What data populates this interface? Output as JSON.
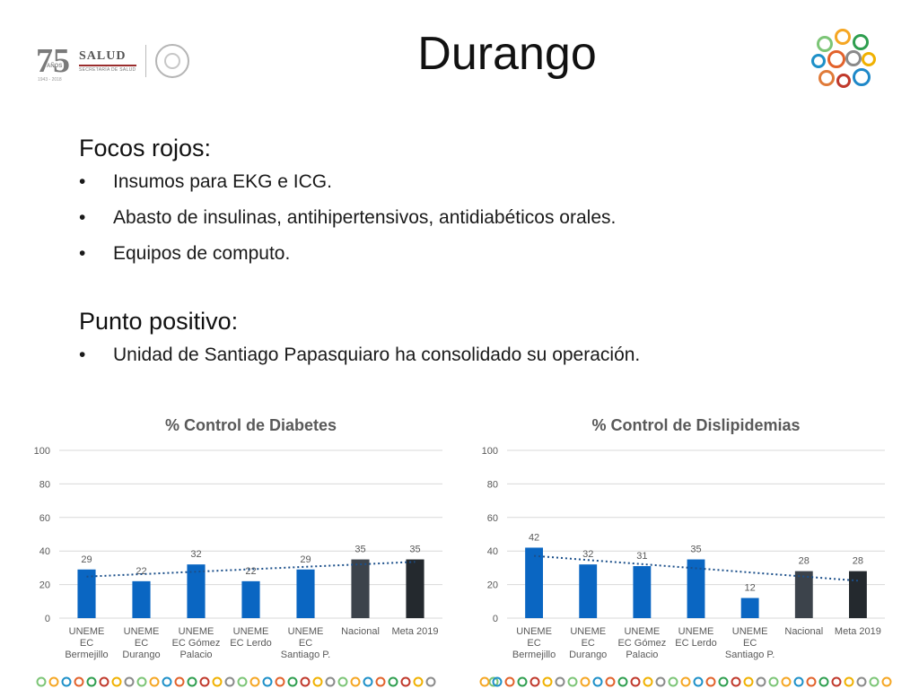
{
  "slide": {
    "title": "Durango",
    "section1_heading": "Focos rojos:",
    "section1_items": [
      "Insumos para EKG e ICG.",
      "Abasto de insulinas, antihipertensivos, antidiabéticos orales.",
      "Equipos de computo."
    ],
    "section2_heading": "Punto positivo:",
    "section2_items": [
      "Unidad de Santiago Papasquiaro ha consolidado su operación."
    ]
  },
  "logos": {
    "anniversary_number": "75",
    "anniversary_word": "AÑOS",
    "anniversary_years": "1943 - 2018",
    "agency_name": "SALUD",
    "agency_subtitle": "SECRETARÍA DE SALUD"
  },
  "colors": {
    "bar_unit": "#0a66c2",
    "bar_national": "#3c434b",
    "bar_goal": "#24292e",
    "trend": "#1b4f8a",
    "gridline": "#d9d9d9",
    "tick_text": "#595959",
    "title_text": "#595959"
  },
  "chart_data": [
    {
      "type": "bar",
      "title": "% Control de Diabetes",
      "categories": [
        [
          "UNEME",
          "EC",
          "Bermejillo"
        ],
        [
          "UNEME",
          "EC",
          "Durango"
        ],
        [
          "UNEME",
          "EC Gómez",
          "Palacio"
        ],
        [
          "UNEME",
          "EC Lerdo"
        ],
        [
          "UNEME",
          "EC",
          "Santiago P."
        ],
        [
          "Nacional"
        ],
        [
          "Meta 2019"
        ]
      ],
      "values": [
        29,
        22,
        32,
        22,
        29,
        35,
        35
      ],
      "bar_kinds": [
        "unit",
        "unit",
        "unit",
        "unit",
        "unit",
        "national",
        "goal"
      ],
      "ylim": [
        0,
        100
      ],
      "yticks": [
        0,
        20,
        40,
        60,
        80,
        100
      ],
      "trendline": "linear, dotted",
      "grid": true,
      "legend": "none"
    },
    {
      "type": "bar",
      "title": "% Control de Dislipidemias",
      "categories": [
        [
          "UNEME",
          "EC",
          "Bermejillo"
        ],
        [
          "UNEME",
          "EC",
          "Durango"
        ],
        [
          "UNEME",
          "EC Gómez",
          "Palacio"
        ],
        [
          "UNEME",
          "EC Lerdo"
        ],
        [
          "UNEME",
          "EC",
          "Santiago P."
        ],
        [
          "Nacional"
        ],
        [
          "Meta 2019"
        ]
      ],
      "values": [
        42,
        32,
        31,
        35,
        12,
        28,
        28
      ],
      "bar_kinds": [
        "unit",
        "unit",
        "unit",
        "unit",
        "unit",
        "national",
        "goal"
      ],
      "ylim": [
        0,
        100
      ],
      "yticks": [
        0,
        20,
        40,
        60,
        80,
        100
      ],
      "trendline": "linear, dotted",
      "grid": true,
      "legend": "none"
    }
  ]
}
